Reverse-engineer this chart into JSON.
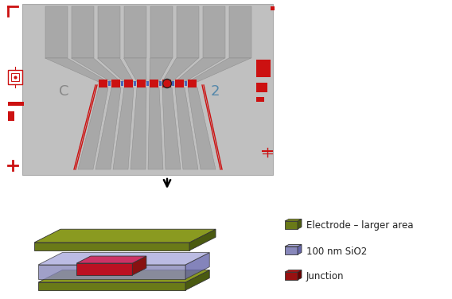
{
  "bg_color": "#ffffff",
  "chip_bg": "#c0c0c0",
  "red_color": "#cc1111",
  "blue_color": "#3355bb",
  "olive_top": "#8a9a20",
  "olive_side_l": "#6a7a18",
  "olive_side_r": "#4a5a10",
  "olive_edge": "#3a4a08",
  "sio2_top": "#aaaadd",
  "sio2_side_l": "#8888bb",
  "sio2_side_r": "#6666aa",
  "junc_top": "#cc3366",
  "junc_side_l": "#bb1122",
  "junc_side_r": "#881111",
  "label_C": "C",
  "label_2": "2",
  "label_C_color": "#888888",
  "label_2_color": "#5588aa",
  "legend_labels": [
    "Electrode – larger area",
    "100 nm SiO2",
    "Junction"
  ],
  "legend_icon_colors": [
    {
      "top": "#8a9a20",
      "side_l": "#6a7a18",
      "side_r": "#4a5a10"
    },
    {
      "top": "#aaaadd",
      "side_l": "#8888bb",
      "side_r": "#6666aa"
    },
    {
      "top": "#cc1111",
      "side_l": "#991111",
      "side_r": "#660000"
    }
  ]
}
